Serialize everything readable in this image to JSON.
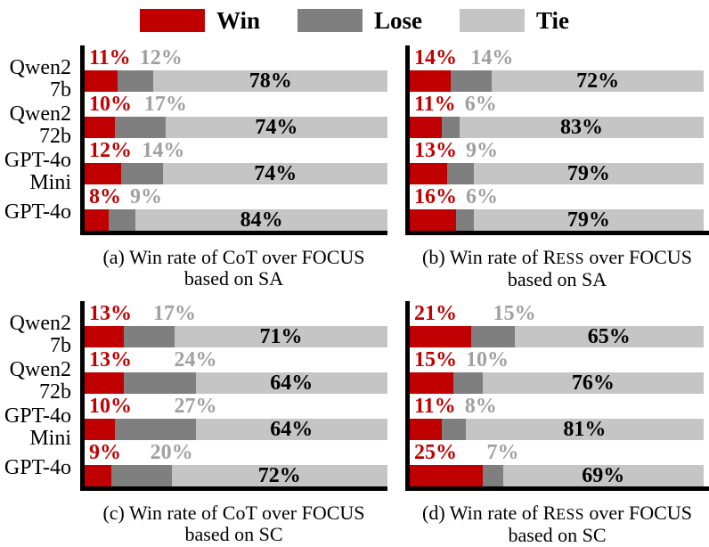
{
  "colors": {
    "win": "#C00000",
    "lose": "#7F7F7F",
    "tie": "#C5C5C5",
    "lose_label_text": "#A0A0A0",
    "tie_label_text": "#000000",
    "axis": "#000000"
  },
  "legend": {
    "position": "top",
    "items": [
      {
        "label": "Win",
        "color": "#C00000"
      },
      {
        "label": "Lose",
        "color": "#7F7F7F"
      },
      {
        "label": "Tie",
        "color": "#C5C5C5"
      }
    ]
  },
  "models": [
    {
      "lines": [
        "Qwen2",
        "7b"
      ]
    },
    {
      "lines": [
        "Qwen2",
        "72b"
      ]
    },
    {
      "lines": [
        "GPT-4o",
        "Mini"
      ]
    },
    {
      "lines": [
        "GPT-4o"
      ]
    }
  ],
  "chart_data": [
    {
      "id": "a",
      "type": "bar",
      "stacked": true,
      "orientation": "horizontal",
      "xlim": [
        0,
        100
      ],
      "grid": false,
      "categories": [
        "Qwen2 7b",
        "Qwen2 72b",
        "GPT-4o Mini",
        "GPT-4o"
      ],
      "series": [
        {
          "name": "Win",
          "values": [
            11,
            10,
            12,
            8
          ]
        },
        {
          "name": "Lose",
          "values": [
            12,
            17,
            14,
            9
          ]
        },
        {
          "name": "Tie",
          "values": [
            78,
            74,
            74,
            84
          ]
        }
      ],
      "caption_parts": [
        "(a) Win rate of CoT over FOCUS"
      ],
      "caption_line2": "based on SA"
    },
    {
      "id": "b",
      "type": "bar",
      "stacked": true,
      "orientation": "horizontal",
      "xlim": [
        0,
        100
      ],
      "grid": false,
      "categories": [
        "Qwen2 7b",
        "Qwen2 72b",
        "GPT-4o Mini",
        "GPT-4o"
      ],
      "series": [
        {
          "name": "Win",
          "values": [
            14,
            11,
            13,
            16
          ]
        },
        {
          "name": "Lose",
          "values": [
            14,
            6,
            9,
            6
          ]
        },
        {
          "name": "Tie",
          "values": [
            72,
            83,
            79,
            79
          ]
        }
      ],
      "caption_parts": [
        "(b) Win rate of R",
        {
          "sc": "ESS"
        },
        " over FOCUS"
      ],
      "caption_line2": "based on SA"
    },
    {
      "id": "c",
      "type": "bar",
      "stacked": true,
      "orientation": "horizontal",
      "xlim": [
        0,
        100
      ],
      "grid": false,
      "categories": [
        "Qwen2 7b",
        "Qwen2 72b",
        "GPT-4o Mini",
        "GPT-4o"
      ],
      "series": [
        {
          "name": "Win",
          "values": [
            13,
            13,
            10,
            9
          ]
        },
        {
          "name": "Lose",
          "values": [
            17,
            24,
            27,
            20
          ]
        },
        {
          "name": "Tie",
          "values": [
            71,
            64,
            64,
            72
          ]
        }
      ],
      "caption_parts": [
        "(c) Win rate of CoT over FOCUS"
      ],
      "caption_line2": "based on SC"
    },
    {
      "id": "d",
      "type": "bar",
      "stacked": true,
      "orientation": "horizontal",
      "xlim": [
        0,
        100
      ],
      "grid": false,
      "categories": [
        "Qwen2 7b",
        "Qwen2 72b",
        "GPT-4o Mini",
        "GPT-4o"
      ],
      "series": [
        {
          "name": "Win",
          "values": [
            21,
            15,
            11,
            25
          ]
        },
        {
          "name": "Lose",
          "values": [
            15,
            10,
            8,
            7
          ]
        },
        {
          "name": "Tie",
          "values": [
            65,
            76,
            81,
            69
          ]
        }
      ],
      "caption_parts": [
        "(d) Win rate of R",
        {
          "sc": "ESS"
        },
        " over FOCUS"
      ],
      "caption_line2": "based on SC"
    }
  ]
}
